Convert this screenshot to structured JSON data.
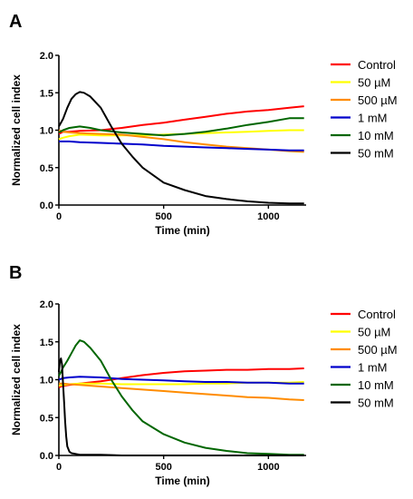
{
  "chart_data": [
    {
      "type": "line",
      "panel": "A",
      "xlabel": "Time (min)",
      "ylabel": "Normalized cell index",
      "xlim": [
        0,
        1180
      ],
      "ylim": [
        0,
        2.0
      ],
      "xticks": [
        "0",
        "500",
        "1000"
      ],
      "xtick_values": [
        0,
        500,
        1000
      ],
      "yticks": [
        "0.0",
        "0.5",
        "1.0",
        "1.5",
        "2.0"
      ],
      "ytick_values": [
        0,
        0.5,
        1.0,
        1.5,
        2.0
      ],
      "legend_position": "right",
      "series": [
        {
          "name": "Control",
          "color": "#ff0000",
          "x": [
            0,
            20,
            50,
            100,
            200,
            300,
            400,
            500,
            600,
            700,
            800,
            900,
            1000,
            1100,
            1170
          ],
          "y": [
            0.95,
            0.98,
            0.98,
            0.99,
            1.0,
            1.03,
            1.07,
            1.1,
            1.14,
            1.18,
            1.22,
            1.25,
            1.27,
            1.3,
            1.32
          ]
        },
        {
          "name": "50 µM",
          "color": "#ffff00",
          "x": [
            0,
            20,
            50,
            100,
            200,
            300,
            400,
            500,
            600,
            700,
            800,
            900,
            1000,
            1100,
            1170
          ],
          "y": [
            0.88,
            0.9,
            0.92,
            0.94,
            0.93,
            0.93,
            0.93,
            0.94,
            0.95,
            0.96,
            0.97,
            0.98,
            0.99,
            1.0,
            1.0
          ]
        },
        {
          "name": "500 µM",
          "color": "#ff8c00",
          "x": [
            0,
            20,
            50,
            100,
            200,
            300,
            400,
            500,
            600,
            700,
            800,
            900,
            1000,
            1100,
            1170
          ],
          "y": [
            1.0,
            0.98,
            0.97,
            0.96,
            0.95,
            0.94,
            0.91,
            0.88,
            0.84,
            0.81,
            0.78,
            0.76,
            0.74,
            0.72,
            0.71
          ]
        },
        {
          "name": "1 mM",
          "color": "#0000cc",
          "x": [
            0,
            20,
            50,
            100,
            200,
            300,
            400,
            500,
            600,
            700,
            800,
            900,
            1000,
            1100,
            1170
          ],
          "y": [
            0.85,
            0.85,
            0.85,
            0.84,
            0.83,
            0.82,
            0.81,
            0.79,
            0.78,
            0.77,
            0.76,
            0.75,
            0.74,
            0.73,
            0.73
          ]
        },
        {
          "name": "10 mM",
          "color": "#006600",
          "x": [
            0,
            20,
            50,
            100,
            150,
            200,
            300,
            400,
            500,
            600,
            700,
            800,
            900,
            1000,
            1100,
            1170
          ],
          "y": [
            0.97,
            1.0,
            1.03,
            1.05,
            1.03,
            1.0,
            0.97,
            0.95,
            0.93,
            0.95,
            0.98,
            1.02,
            1.07,
            1.11,
            1.16,
            1.16
          ]
        },
        {
          "name": "50 mM",
          "color": "#000000",
          "x": [
            0,
            10,
            20,
            40,
            60,
            80,
            100,
            120,
            150,
            200,
            250,
            300,
            350,
            400,
            500,
            600,
            700,
            800,
            900,
            1000,
            1100,
            1170
          ],
          "y": [
            1.05,
            1.1,
            1.15,
            1.3,
            1.42,
            1.48,
            1.51,
            1.5,
            1.45,
            1.3,
            1.05,
            0.82,
            0.65,
            0.5,
            0.3,
            0.2,
            0.12,
            0.08,
            0.05,
            0.03,
            0.02,
            0.02
          ]
        }
      ]
    },
    {
      "type": "line",
      "panel": "B",
      "xlabel": "Time (min)",
      "ylabel": "Normalized cell index",
      "xlim": [
        0,
        1180
      ],
      "ylim": [
        0,
        2.0
      ],
      "xticks": [
        "0",
        "500",
        "1000"
      ],
      "xtick_values": [
        0,
        500,
        1000
      ],
      "yticks": [
        "0.0",
        "0.5",
        "1.0",
        "1.5",
        "2.0"
      ],
      "ytick_values": [
        0,
        0.5,
        1.0,
        1.5,
        2.0
      ],
      "legend_position": "right",
      "series": [
        {
          "name": "Control",
          "color": "#ff0000",
          "x": [
            0,
            20,
            50,
            100,
            200,
            300,
            400,
            500,
            600,
            700,
            800,
            900,
            1000,
            1100,
            1170
          ],
          "y": [
            0.9,
            0.92,
            0.93,
            0.95,
            0.98,
            1.02,
            1.06,
            1.09,
            1.11,
            1.12,
            1.13,
            1.13,
            1.14,
            1.14,
            1.15
          ]
        },
        {
          "name": "50 µM",
          "color": "#ffff00",
          "x": [
            0,
            20,
            50,
            100,
            200,
            300,
            400,
            500,
            600,
            700,
            800,
            900,
            1000,
            1100,
            1170
          ],
          "y": [
            0.92,
            0.93,
            0.94,
            0.95,
            0.95,
            0.94,
            0.94,
            0.94,
            0.94,
            0.95,
            0.95,
            0.96,
            0.96,
            0.96,
            0.97
          ]
        },
        {
          "name": "500 µM",
          "color": "#ff8c00",
          "x": [
            0,
            20,
            50,
            100,
            200,
            300,
            400,
            500,
            600,
            700,
            800,
            900,
            1000,
            1100,
            1170
          ],
          "y": [
            0.95,
            0.95,
            0.94,
            0.93,
            0.91,
            0.89,
            0.87,
            0.85,
            0.83,
            0.81,
            0.79,
            0.77,
            0.76,
            0.74,
            0.73
          ]
        },
        {
          "name": "1 mM",
          "color": "#0000cc",
          "x": [
            0,
            20,
            50,
            100,
            200,
            300,
            400,
            500,
            600,
            700,
            800,
            900,
            1000,
            1100,
            1170
          ],
          "y": [
            1.0,
            1.02,
            1.03,
            1.04,
            1.03,
            1.01,
            1.0,
            0.99,
            0.98,
            0.97,
            0.97,
            0.96,
            0.96,
            0.95,
            0.95
          ]
        },
        {
          "name": "10 mM",
          "color": "#006600",
          "x": [
            0,
            10,
            20,
            40,
            60,
            80,
            100,
            120,
            150,
            200,
            250,
            300,
            350,
            400,
            500,
            600,
            700,
            800,
            900,
            1000,
            1100,
            1170
          ],
          "y": [
            1.05,
            1.1,
            1.16,
            1.25,
            1.35,
            1.45,
            1.52,
            1.5,
            1.42,
            1.25,
            1.0,
            0.78,
            0.6,
            0.45,
            0.28,
            0.17,
            0.1,
            0.06,
            0.03,
            0.02,
            0.01,
            0.01
          ]
        },
        {
          "name": "50 mM",
          "color": "#000000",
          "x": [
            0,
            5,
            10,
            15,
            20,
            25,
            30,
            35,
            40,
            50,
            60,
            80,
            100,
            150,
            200,
            300,
            500,
            800,
            1170
          ],
          "y": [
            1.1,
            1.25,
            1.28,
            1.2,
            0.95,
            0.7,
            0.45,
            0.25,
            0.12,
            0.05,
            0.03,
            0.02,
            0.01,
            0.01,
            0.01,
            0.0,
            0.0,
            0.0,
            0.0
          ]
        }
      ]
    }
  ]
}
